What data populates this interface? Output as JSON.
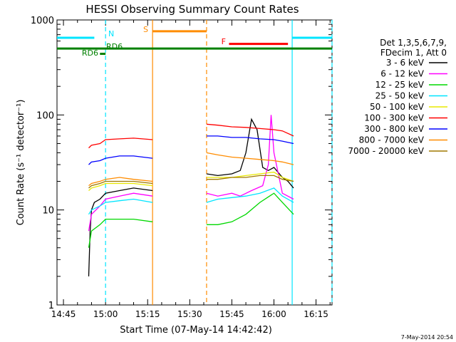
{
  "chart_data": {
    "type": "line",
    "title": "HESSI Observing Summary Count Rates",
    "xlabel": "Start Time (07-May-14 14:42:42)",
    "ylabel": "Count Rate (s⁻¹ detector⁻¹)",
    "ylim": [
      1,
      1000
    ],
    "yscale": "log",
    "xlim_minutes_after_14_42_42": [
      0,
      98
    ],
    "x_ticks": [
      "14:45",
      "15:00",
      "15:15",
      "15:30",
      "15:45",
      "16:00",
      "16:15"
    ],
    "y_ticks": [
      "1",
      "10",
      "100",
      "1000"
    ],
    "legend_placement": "right",
    "legend_header": [
      "Det 1,3,5,6,7,9,",
      "FDecim 1, Att 0"
    ],
    "series": [
      {
        "name": "3 - 6 keV",
        "color": "#000000",
        "segments": [
          {
            "x": [
              "14:54",
              "14:54:30",
              "14:55",
              "14:56",
              "14:58",
              "15:00",
              "15:05",
              "15:10",
              "15:16:45"
            ],
            "y": [
              2,
              6,
              10,
              12,
              13,
              15,
              16,
              17,
              16
            ]
          },
          {
            "x": [
              "15:36",
              "15:40",
              "15:45",
              "15:48",
              "15:50",
              "15:52",
              "15:54",
              "15:56",
              "15:58",
              "16:00",
              "16:03",
              "16:05",
              "16:07"
            ],
            "y": [
              24,
              23,
              24,
              26,
              40,
              90,
              70,
              28,
              26,
              28,
              22,
              20,
              17
            ]
          }
        ]
      },
      {
        "name": "6 - 12 keV",
        "color": "#ff00ff",
        "segments": [
          {
            "x": [
              "14:54",
              "14:55",
              "14:58",
              "15:00",
              "15:05",
              "15:10",
              "15:16:45"
            ],
            "y": [
              6,
              9,
              11,
              13,
              14,
              15,
              14
            ]
          },
          {
            "x": [
              "15:36",
              "15:40",
              "15:45",
              "15:48",
              "15:52",
              "15:56",
              "15:58",
              "15:59",
              "16:00",
              "16:03",
              "16:07"
            ],
            "y": [
              15,
              14,
              15,
              14,
              16,
              18,
              30,
              100,
              40,
              15,
              13
            ]
          }
        ]
      },
      {
        "name": "12 - 25 keV",
        "color": "#00d800",
        "segments": [
          {
            "x": [
              "14:54",
              "14:55",
              "14:58",
              "15:00",
              "15:05",
              "15:10",
              "15:16:45"
            ],
            "y": [
              4,
              6,
              7,
              8,
              8,
              8,
              7.5
            ]
          },
          {
            "x": [
              "15:36",
              "15:40",
              "15:45",
              "15:50",
              "15:55",
              "16:00",
              "16:03",
              "16:07"
            ],
            "y": [
              7,
              7,
              7.5,
              9,
              12,
              15,
              12,
              9
            ]
          }
        ]
      },
      {
        "name": "25 - 50 keV",
        "color": "#00e5ff",
        "segments": [
          {
            "x": [
              "14:54",
              "14:55",
              "14:58",
              "15:00",
              "15:05",
              "15:10",
              "15:16:45"
            ],
            "y": [
              9,
              10,
              11,
              12,
              12.5,
              13,
              12
            ]
          },
          {
            "x": [
              "15:36",
              "15:40",
              "15:45",
              "15:50",
              "15:55",
              "16:00",
              "16:03",
              "16:07"
            ],
            "y": [
              12,
              13,
              13.5,
              14,
              15,
              17,
              14,
              12
            ]
          }
        ]
      },
      {
        "name": "50 - 100 keV",
        "color": "#e8e800",
        "segments": [
          {
            "x": [
              "14:54",
              "14:55",
              "14:58",
              "15:00",
              "15:05",
              "15:10",
              "15:16:45"
            ],
            "y": [
              16,
              17,
              18,
              19,
              19,
              19,
              18
            ]
          },
          {
            "x": [
              "15:36",
              "15:40",
              "15:45",
              "15:50",
              "15:55",
              "16:00",
              "16:03",
              "16:07"
            ],
            "y": [
              22,
              22,
              22,
              23,
              24,
              25,
              22,
              20
            ]
          }
        ]
      },
      {
        "name": "100 - 300 keV",
        "color": "#ff0000",
        "segments": [
          {
            "x": [
              "14:54",
              "14:55",
              "14:58",
              "15:00",
              "15:05",
              "15:10",
              "15:16:45"
            ],
            "y": [
              45,
              48,
              50,
              55,
              56,
              57,
              55
            ]
          },
          {
            "x": [
              "15:36",
              "15:40",
              "15:45",
              "15:50",
              "15:55",
              "16:00",
              "16:03",
              "16:07"
            ],
            "y": [
              80,
              78,
              75,
              74,
              72,
              70,
              68,
              60
            ]
          }
        ]
      },
      {
        "name": "300 - 800 keV",
        "color": "#0000ff",
        "segments": [
          {
            "x": [
              "14:54",
              "14:55",
              "14:58",
              "15:00",
              "15:05",
              "15:10",
              "15:16:45"
            ],
            "y": [
              30,
              32,
              33,
              35,
              37,
              37,
              35
            ]
          },
          {
            "x": [
              "15:36",
              "15:40",
              "15:45",
              "15:50",
              "15:55",
              "16:00",
              "16:03",
              "16:07"
            ],
            "y": [
              60,
              60,
              58,
              58,
              56,
              55,
              53,
              50
            ]
          }
        ]
      },
      {
        "name": "800 - 7000 keV",
        "color": "#ff8c00",
        "segments": [
          {
            "x": [
              "14:54",
              "14:55",
              "14:58",
              "15:00",
              "15:05",
              "15:10",
              "15:16:45"
            ],
            "y": [
              18,
              19,
              20,
              21,
              22,
              21,
              20
            ]
          },
          {
            "x": [
              "15:36",
              "15:40",
              "15:45",
              "15:50",
              "15:55",
              "16:00",
              "16:03",
              "16:07"
            ],
            "y": [
              40,
              38,
              36,
              35,
              34,
              33,
              32,
              30
            ]
          }
        ]
      },
      {
        "name": "7000 - 20000 keV",
        "color": "#a07800",
        "segments": [
          {
            "x": [
              "14:54",
              "14:55",
              "14:58",
              "15:00",
              "15:05",
              "15:10",
              "15:16:45"
            ],
            "y": [
              17,
              18,
              19,
              20,
              20,
              20,
              19
            ]
          },
          {
            "x": [
              "15:36",
              "15:40",
              "15:45",
              "15:50",
              "15:55",
              "16:00",
              "16:03",
              "16:07"
            ],
            "y": [
              21,
              21,
              22,
              22,
              23,
              23,
              21,
              20
            ]
          }
        ]
      }
    ],
    "flag_bars": [
      {
        "label": "N",
        "color": "#00e5ff",
        "segments": [
          [
            "14:42:42",
            "14:56"
          ],
          [
            "16:06:30",
            "16:20:42"
          ]
        ],
        "level": 650
      },
      {
        "label": "S",
        "color": "#ff8c00",
        "segments": [
          [
            "15:16:45",
            "15:36"
          ]
        ],
        "level": 760
      },
      {
        "label": "F",
        "color": "#ff0000",
        "segments": [
          [
            "15:44",
            "16:05"
          ]
        ],
        "level": 560
      },
      {
        "label": "RD6",
        "color": "#008000",
        "segments": [
          [
            "14:42:42",
            "16:20:42"
          ]
        ],
        "level": 500
      },
      {
        "label": "RD6",
        "color": "#008000",
        "segments": [
          [
            "14:58",
            "15:00"
          ]
        ],
        "level": 440
      }
    ],
    "vertical_markers": [
      {
        "time": "15:00",
        "color": "#00e5ff",
        "style": "dashed"
      },
      {
        "time": "15:16:45",
        "color": "#ff8c00",
        "style": "solid"
      },
      {
        "time": "15:36",
        "color": "#ff8c00",
        "style": "dashed"
      },
      {
        "time": "16:06:30",
        "color": "#00e5ff",
        "style": "solid"
      },
      {
        "time": "16:20:42",
        "color": "#00e5ff",
        "style": "dashed"
      }
    ]
  },
  "timestamp": "7-May-2014 20:54"
}
